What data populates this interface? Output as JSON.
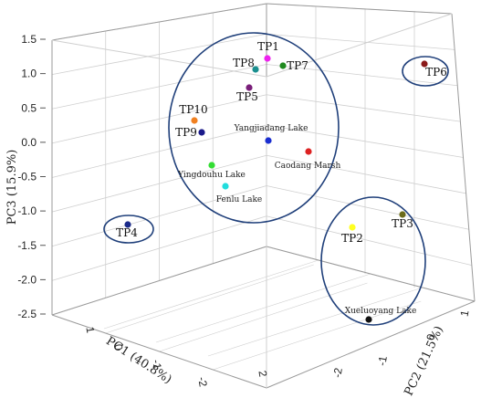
{
  "chart_data": {
    "type": "scatter",
    "projection": "3d",
    "title": "",
    "axes": {
      "x": {
        "label": "PC1 (40.8%)",
        "ticks": [
          "1",
          "0",
          "-1",
          "-2",
          "2"
        ]
      },
      "y": {
        "label": "PC2 (21.5%)",
        "ticks": [
          "1",
          "0",
          "-1",
          "-2"
        ]
      },
      "z": {
        "label": "PC3 (15.9%)",
        "ticks": [
          "1.5",
          "1.0",
          "0.5",
          "0.0",
          "-0.5",
          "-1.0",
          "-1.5",
          "-2.0",
          "-2.5"
        ],
        "range": [
          -2.5,
          1.5
        ]
      }
    },
    "grid": true,
    "points": [
      {
        "label": "TP1",
        "color": "#ee22ee",
        "pc3": 1.27
      },
      {
        "label": "TP8",
        "color": "#1a8f8f",
        "pc3": 1.1
      },
      {
        "label": "TP7",
        "color": "#1f8a1f",
        "pc3": 1.15
      },
      {
        "label": "TP5",
        "color": "#7a1f7a",
        "pc3": 0.83
      },
      {
        "label": "TP6",
        "color": "#8b1a1a",
        "pc3": 1.2
      },
      {
        "label": "TP10",
        "color": "#f08020",
        "pc3": 0.35
      },
      {
        "label": "TP9",
        "color": "#1a1a8a",
        "pc3": 0.2
      },
      {
        "label": "Yangjiadang Lake",
        "color": "#1a2ed0",
        "pc3": 0.05
      },
      {
        "label": "Caodang Marsh",
        "color": "#dd2222",
        "pc3": -0.1
      },
      {
        "label": "Yingdouhu Lake",
        "color": "#33dd33",
        "pc3": -0.3
      },
      {
        "label": "Fenlu Lake",
        "color": "#22dddd",
        "pc3": -0.62
      },
      {
        "label": "TP4",
        "color": "#1a2a8a",
        "pc3": -1.15
      },
      {
        "label": "TP2",
        "color": "#ffff22",
        "pc3": -1.35
      },
      {
        "label": "TP3",
        "color": "#6b6b1a",
        "pc3": -1.2
      },
      {
        "label": "Xueluoyang Lake",
        "color": "#111111",
        "pc3": -2.3
      }
    ],
    "groups": [
      [
        "TP1",
        "TP8",
        "TP7",
        "TP5",
        "TP10",
        "TP9",
        "Yangjiadang Lake",
        "Caodang Marsh",
        "Yingdouhu Lake",
        "Fenlu Lake"
      ],
      [
        "TP6"
      ],
      [
        "TP4"
      ],
      [
        "TP2",
        "TP3",
        "Xueluoyang Lake"
      ]
    ],
    "colors": {
      "ellipse": "#1f3f7a",
      "grid": "#cfcfcf",
      "frame": "#9a9a9a"
    }
  }
}
